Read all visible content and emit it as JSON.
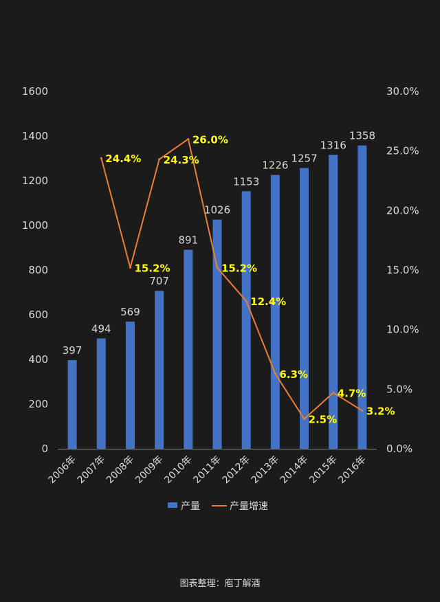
{
  "chart_data": {
    "type": "bar",
    "categories": [
      "2006年",
      "2007年",
      "2008年",
      "2009年",
      "2010年",
      "2011年",
      "2012年",
      "2013年",
      "2014年",
      "2015年",
      "2016年"
    ],
    "series": [
      {
        "name": "产量",
        "type": "bar",
        "axis": "left",
        "values": [
          397,
          494,
          569,
          707,
          891,
          1026,
          1153,
          1226,
          1257,
          1316,
          1358
        ],
        "labels": [
          "397",
          "494",
          "569",
          "707",
          "891",
          "1026",
          "1153",
          "1226",
          "1257",
          "1316",
          "1358"
        ],
        "color": "#4472c4"
      },
      {
        "name": "产量增速",
        "type": "line",
        "axis": "right",
        "values": [
          null,
          24.4,
          15.2,
          24.3,
          26.0,
          15.2,
          12.4,
          6.3,
          2.5,
          4.7,
          3.2
        ],
        "labels": [
          null,
          "24.4%",
          "15.2%",
          "24.3%",
          "26.0%",
          "15.2%",
          "12.4%",
          "6.3%",
          "2.5%",
          "4.7%",
          "3.2%"
        ],
        "color": "#ed7d31",
        "label_color": "#ffff00"
      }
    ],
    "y_left": {
      "ylim": [
        0,
        1600
      ],
      "ticks": [
        "0",
        "200",
        "400",
        "600",
        "800",
        "1000",
        "1200",
        "1400",
        "1600"
      ]
    },
    "y_right": {
      "ylim": [
        0,
        30
      ],
      "ticks": [
        "0.0%",
        "5.0%",
        "10.0%",
        "15.0%",
        "20.0%",
        "25.0%",
        "30.0%"
      ]
    },
    "grid": false,
    "legend_position": "bottom",
    "axis_text_color": "#d9d9d9"
  },
  "footer": {
    "text": "图表整理：庖丁解酒"
  }
}
